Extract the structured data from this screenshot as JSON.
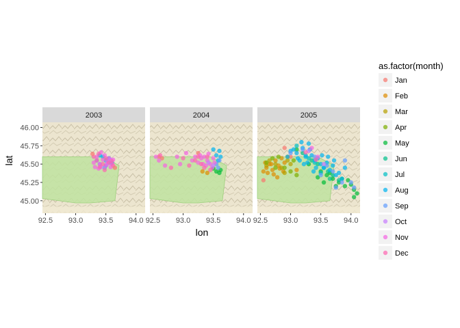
{
  "chart_data": {
    "type": "scatter",
    "xlabel": "lon",
    "ylabel": "lat",
    "xlim": [
      92.45,
      94.15
    ],
    "ylim": [
      44.83,
      46.07
    ],
    "x_ticks": [
      "92.5",
      "93.0",
      "93.5",
      "94.0"
    ],
    "y_ticks": [
      "45.00",
      "45.25",
      "45.50",
      "45.75",
      "46.00"
    ],
    "facets": [
      "2003",
      "2004",
      "2005"
    ],
    "legend": {
      "title": "as.factor(month)",
      "placement": "right",
      "entries": [
        {
          "label": "Jan",
          "color": "#F8766D"
        },
        {
          "label": "Feb",
          "color": "#DE8C00"
        },
        {
          "label": "Mar",
          "color": "#B79F00"
        },
        {
          "label": "Apr",
          "color": "#7CAE00"
        },
        {
          "label": "May",
          "color": "#00BA38"
        },
        {
          "label": "Jun",
          "color": "#00C08B"
        },
        {
          "label": "Jul",
          "color": "#00BFC4"
        },
        {
          "label": "Aug",
          "color": "#00B4F0"
        },
        {
          "label": "Sep",
          "color": "#619CFF"
        },
        {
          "label": "Oct",
          "color": "#C77CFF"
        },
        {
          "label": "Nov",
          "color": "#F564E3"
        },
        {
          "label": "Dec",
          "color": "#FF64B0"
        }
      ]
    },
    "series": [
      {
        "facet": "2003",
        "month": "Aug",
        "x": [
          93.45,
          93.5,
          93.55,
          93.4,
          93.6,
          93.5
        ],
        "y": [
          45.6,
          45.55,
          45.58,
          45.62,
          45.52,
          45.48
        ]
      },
      {
        "facet": "2003",
        "month": "Sep",
        "x": [
          93.4,
          93.48,
          93.56,
          93.35
        ],
        "y": [
          45.5,
          45.45,
          45.52,
          45.55
        ]
      },
      {
        "facet": "2003",
        "month": "Oct",
        "x": [
          93.42,
          93.52,
          93.58
        ],
        "y": [
          45.46,
          45.5,
          45.56
        ]
      },
      {
        "facet": "2003",
        "month": "Nov",
        "x": [
          93.3,
          93.35,
          93.4,
          93.45,
          93.5,
          93.55,
          93.6,
          93.38,
          93.48,
          93.58,
          93.42,
          93.52,
          93.32,
          93.62
        ],
        "y": [
          45.52,
          45.6,
          45.5,
          45.56,
          45.48,
          45.58,
          45.5,
          45.44,
          45.62,
          45.46,
          45.66,
          45.54,
          45.46,
          45.56
        ]
      },
      {
        "facet": "2003",
        "month": "Dec",
        "x": [
          93.35,
          93.45,
          93.55,
          93.4,
          93.5,
          93.6,
          93.3,
          93.48,
          93.62,
          93.38
        ],
        "y": [
          45.55,
          45.5,
          45.52,
          45.46,
          45.58,
          45.54,
          45.6,
          45.42,
          45.48,
          45.64
        ]
      },
      {
        "facet": "2003",
        "month": "Jan",
        "x": [
          93.28,
          93.65
        ],
        "y": [
          45.64,
          45.45
        ]
      },
      {
        "facet": "2004",
        "month": "Jan",
        "x": [
          92.6,
          92.65,
          93.25
        ],
        "y": [
          45.6,
          45.58,
          45.65
        ]
      },
      {
        "facet": "2004",
        "month": "May",
        "x": [
          93.55,
          93.6,
          93.62,
          93.5
        ],
        "y": [
          45.4,
          45.38,
          45.42,
          45.44
        ]
      },
      {
        "facet": "2004",
        "month": "Aug",
        "x": [
          93.55,
          93.6,
          93.58,
          93.62,
          93.5
        ],
        "y": [
          45.62,
          45.68,
          45.55,
          45.6,
          45.7
        ]
      },
      {
        "facet": "2004",
        "month": "Sep",
        "x": [
          93.55,
          93.6,
          93.58
        ],
        "y": [
          45.5,
          45.55,
          45.45
        ]
      },
      {
        "facet": "2004",
        "month": "Nov",
        "x": [
          92.55,
          92.6,
          92.7,
          92.9,
          92.95,
          93.05,
          93.15,
          93.2,
          93.25,
          93.3,
          93.35,
          93.4,
          93.45,
          93.5,
          93.38,
          93.48,
          93.28,
          93.42,
          93.52,
          93.33
        ],
        "y": [
          45.6,
          45.55,
          45.48,
          45.6,
          45.5,
          45.65,
          45.55,
          45.6,
          45.52,
          45.58,
          45.6,
          45.55,
          45.5,
          45.58,
          45.48,
          45.45,
          45.62,
          45.64,
          45.52,
          45.5
        ]
      },
      {
        "facet": "2004",
        "month": "Dec",
        "x": [
          92.62,
          92.8,
          93.0,
          93.1,
          93.2,
          93.3,
          93.4,
          93.45,
          93.35,
          93.25
        ],
        "y": [
          45.62,
          45.45,
          45.58,
          45.48,
          45.55,
          45.5,
          45.6,
          45.42,
          45.45,
          45.6
        ]
      },
      {
        "facet": "2004",
        "month": "Oct",
        "x": [
          93.42,
          93.5
        ],
        "y": [
          45.52,
          45.48
        ]
      },
      {
        "facet": "2004",
        "month": "Feb",
        "x": [
          93.32,
          93.4
        ],
        "y": [
          45.4,
          45.38
        ]
      },
      {
        "facet": "2005",
        "month": "Feb",
        "x": [
          92.55,
          92.6,
          92.65,
          92.7,
          92.75,
          92.8,
          92.85,
          92.9,
          92.95,
          92.62,
          92.72,
          92.82,
          92.58,
          92.68,
          92.88,
          93.1,
          92.78
        ],
        "y": [
          45.4,
          45.45,
          45.5,
          45.42,
          45.55,
          45.48,
          45.58,
          45.52,
          45.6,
          45.38,
          45.36,
          45.44,
          45.52,
          45.5,
          45.4,
          45.42,
          45.32
        ]
      },
      {
        "facet": "2005",
        "month": "Mar",
        "x": [
          92.65,
          92.75,
          92.85,
          92.95,
          93.0,
          92.6,
          92.9
        ],
        "y": [
          45.55,
          45.5,
          45.45,
          45.55,
          45.5,
          45.48,
          45.38
        ]
      },
      {
        "facet": "2005",
        "month": "Apr",
        "x": [
          92.6,
          92.7,
          92.8,
          92.9,
          93.0,
          93.1,
          92.75,
          93.05
        ],
        "y": [
          45.52,
          45.58,
          45.6,
          45.45,
          45.4,
          45.35,
          45.45,
          45.55
        ]
      },
      {
        "facet": "2005",
        "month": "Jan",
        "x": [
          92.9,
          93.0,
          92.55
        ],
        "y": [
          45.72,
          45.6,
          45.28
        ]
      },
      {
        "facet": "2005",
        "month": "May",
        "x": [
          93.1,
          93.3,
          93.5,
          93.6,
          93.7,
          93.8,
          93.85,
          93.9,
          94.0,
          94.05,
          93.65,
          93.75,
          93.45,
          93.55,
          93.95,
          94.1,
          94.05
        ],
        "y": [
          45.7,
          45.5,
          45.4,
          45.35,
          45.3,
          45.25,
          45.3,
          45.2,
          45.22,
          45.15,
          45.38,
          45.2,
          45.32,
          45.25,
          45.28,
          45.1,
          45.05
        ]
      },
      {
        "facet": "2005",
        "month": "Jun",
        "x": [
          93.2,
          93.35,
          93.45,
          93.65,
          93.7,
          93.8,
          93.62
        ],
        "y": [
          45.65,
          45.55,
          45.5,
          45.3,
          45.35,
          45.28,
          45.4
        ]
      },
      {
        "facet": "2005",
        "month": "Jul",
        "x": [
          93.1,
          93.25,
          93.4,
          93.55,
          93.5,
          93.3
        ],
        "y": [
          45.75,
          45.62,
          45.52,
          45.45,
          45.38,
          45.58
        ]
      },
      {
        "facet": "2005",
        "month": "Aug",
        "x": [
          92.95,
          93.05,
          93.1,
          93.15,
          93.2,
          93.25,
          93.3,
          93.35,
          93.4,
          93.45,
          93.5,
          93.55,
          93.6,
          93.65,
          93.7,
          93.75,
          93.8,
          93.85,
          93.9,
          93.0,
          93.12,
          93.22,
          93.32,
          93.42,
          93.52,
          93.28,
          93.38,
          93.18,
          93.62,
          93.72
        ],
        "y": [
          45.6,
          45.7,
          45.65,
          45.55,
          45.72,
          45.6,
          45.78,
          45.62,
          45.55,
          45.58,
          45.5,
          45.45,
          45.52,
          45.42,
          45.48,
          45.35,
          45.38,
          45.3,
          45.45,
          45.68,
          45.58,
          45.5,
          45.7,
          45.45,
          45.62,
          45.52,
          45.4,
          45.8,
          45.6,
          45.55
        ]
      },
      {
        "facet": "2005",
        "month": "Sep",
        "x": [
          93.0,
          93.2,
          93.4,
          93.6,
          93.7,
          93.85,
          94.0,
          93.9,
          93.75,
          93.5,
          94.05
        ],
        "y": [
          45.65,
          45.7,
          45.6,
          45.48,
          45.4,
          45.25,
          45.25,
          45.55,
          45.18,
          45.35,
          45.18
        ]
      },
      {
        "facet": "2005",
        "month": "Oct",
        "x": [
          93.3,
          93.55
        ],
        "y": [
          45.68,
          45.5
        ]
      },
      {
        "facet": "2005",
        "month": "Nov",
        "x": [
          93.35,
          93.45
        ],
        "y": [
          45.72,
          45.6
        ]
      },
      {
        "facet": "2005",
        "month": "Dec",
        "x": [
          93.25,
          93.42
        ],
        "y": [
          45.66,
          45.56
        ]
      }
    ]
  }
}
